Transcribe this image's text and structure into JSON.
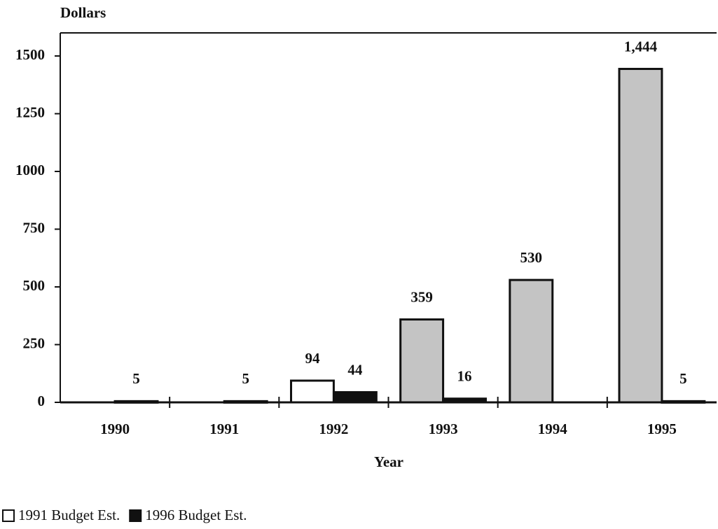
{
  "chart_data": {
    "type": "bar",
    "y_axis_label": "Dollars",
    "x_axis_label": "Year",
    "categories": [
      "1990",
      "1991",
      "1992",
      "1993",
      "1994",
      "1995"
    ],
    "series": [
      {
        "name": "1991 Budget Est.",
        "color": "#ffffff",
        "colors": [
          "#ffffff",
          "#ffffff",
          "#ffffff",
          "#c4c4c4",
          "#c4c4c4",
          "#c4c4c4"
        ],
        "values": [
          null,
          null,
          94,
          359,
          530,
          1444
        ],
        "value_labels": [
          null,
          null,
          "94",
          "359",
          "530",
          "1,444"
        ]
      },
      {
        "name": "1996 Budget Est.",
        "color": "#111111",
        "values": [
          5,
          5,
          44,
          16,
          null,
          5
        ],
        "value_labels": [
          "5",
          "5",
          "44",
          "16",
          null,
          "5"
        ]
      }
    ],
    "ylim": [
      0,
      1600
    ],
    "yticks": [
      0,
      250,
      500,
      750,
      1000,
      1250,
      1500
    ],
    "legend": "bottom-left"
  }
}
